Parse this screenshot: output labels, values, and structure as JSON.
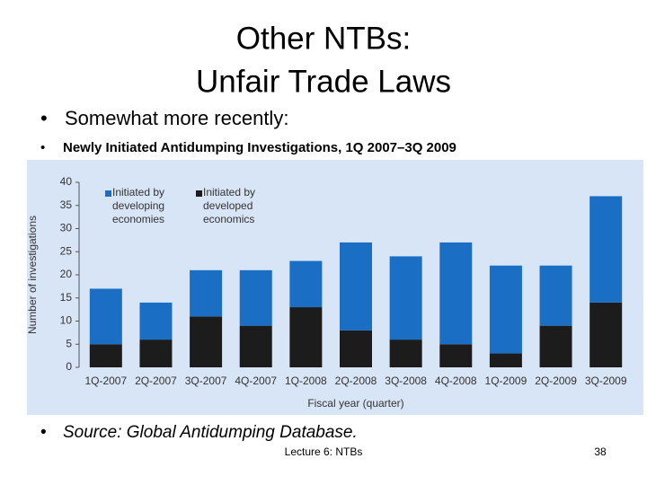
{
  "title": [
    "Other NTBs:",
    "Unfair Trade Laws"
  ],
  "bullets": [
    "Somewhat more recently:",
    "Newly Initiated Antidumping Investigations, 1Q 2007–3Q 2009",
    "Source: Global Antidumping Database."
  ],
  "footer": {
    "text": "Lecture 6: NTBs",
    "page": 38
  },
  "chart_data": {
    "type": "stacked-bar",
    "categories": [
      "1Q-2007",
      "2Q-2007",
      "3Q-2007",
      "4Q-2007",
      "1Q-2008",
      "2Q-2008",
      "3Q-2008",
      "4Q-2008",
      "1Q-2009",
      "2Q-2009",
      "3Q-2009"
    ],
    "series": [
      {
        "name": "Initiated by developed economics",
        "color": "#1c1c1c",
        "values": [
          5,
          6,
          11,
          9,
          13,
          8,
          6,
          5,
          3,
          9,
          14
        ]
      },
      {
        "name": "Initiated by developing economies",
        "color": "#1a6fc4",
        "values": [
          12,
          8,
          10,
          12,
          10,
          19,
          18,
          22,
          19,
          13,
          23
        ]
      }
    ],
    "ylabel": "Number of investigations",
    "xlabel": "Fiscal year (quarter)",
    "ylim": [
      0,
      40
    ],
    "yticks": [
      0,
      5,
      10,
      15,
      20,
      25,
      30,
      35,
      40
    ],
    "grid": false
  }
}
